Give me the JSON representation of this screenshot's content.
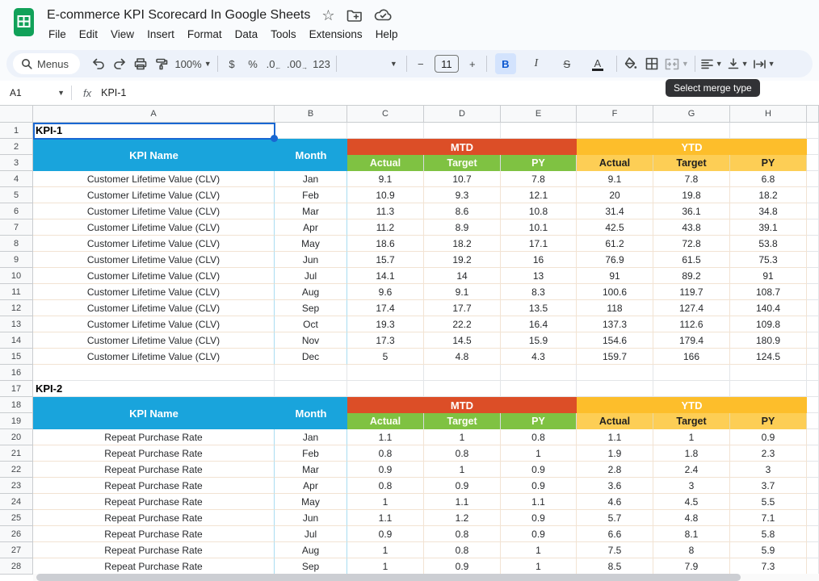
{
  "titlebar": {
    "title": "E-commerce KPI Scorecard In Google Sheets",
    "menus": [
      "File",
      "Edit",
      "View",
      "Insert",
      "Format",
      "Data",
      "Tools",
      "Extensions",
      "Help"
    ]
  },
  "toolbar": {
    "menus_label": "Menus",
    "zoom_level": "100%",
    "font_size": "11",
    "buttons": {
      "currency": "$",
      "percent": "%",
      "decrease_decimal": ".0",
      "increase_decimal": ".00",
      "number_format": "123",
      "minus": "−",
      "plus": "+",
      "bold": "B",
      "italic": "I",
      "strikethrough": "S",
      "text_color": "A"
    },
    "tooltip": "Select merge type"
  },
  "formula_bar": {
    "cell_ref": "A1",
    "formula": "KPI-1"
  },
  "grid": {
    "columns": [
      "A",
      "B",
      "C",
      "D",
      "E",
      "F",
      "G",
      "H"
    ],
    "visible_row_count": 28,
    "active_cell": "A1"
  },
  "tables": [
    {
      "label": "KPI-1",
      "label_row": 1,
      "header_row": 2,
      "data_row": 4,
      "col_headers": [
        "KPI Name",
        "Month"
      ],
      "group_headers": [
        "MTD",
        "YTD"
      ],
      "sub_headers": [
        "Actual",
        "Target",
        "PY"
      ],
      "rows": [
        {
          "kpi": "Customer Lifetime Value (CLV)",
          "month": "Jan",
          "values": [
            "9.1",
            "10.7",
            "7.8",
            "9.1",
            "7.8",
            "6.8"
          ]
        },
        {
          "kpi": "Customer Lifetime Value (CLV)",
          "month": "Feb",
          "values": [
            "10.9",
            "9.3",
            "12.1",
            "20",
            "19.8",
            "18.2"
          ]
        },
        {
          "kpi": "Customer Lifetime Value (CLV)",
          "month": "Mar",
          "values": [
            "11.3",
            "8.6",
            "10.8",
            "31.4",
            "36.1",
            "34.8"
          ]
        },
        {
          "kpi": "Customer Lifetime Value (CLV)",
          "month": "Apr",
          "values": [
            "11.2",
            "8.9",
            "10.1",
            "42.5",
            "43.8",
            "39.1"
          ]
        },
        {
          "kpi": "Customer Lifetime Value (CLV)",
          "month": "May",
          "values": [
            "18.6",
            "18.2",
            "17.1",
            "61.2",
            "72.8",
            "53.8"
          ]
        },
        {
          "kpi": "Customer Lifetime Value (CLV)",
          "month": "Jun",
          "values": [
            "15.7",
            "19.2",
            "16",
            "76.9",
            "61.5",
            "75.3"
          ]
        },
        {
          "kpi": "Customer Lifetime Value (CLV)",
          "month": "Jul",
          "values": [
            "14.1",
            "14",
            "13",
            "91",
            "89.2",
            "91"
          ]
        },
        {
          "kpi": "Customer Lifetime Value (CLV)",
          "month": "Aug",
          "values": [
            "9.6",
            "9.1",
            "8.3",
            "100.6",
            "119.7",
            "108.7"
          ]
        },
        {
          "kpi": "Customer Lifetime Value (CLV)",
          "month": "Sep",
          "values": [
            "17.4",
            "17.7",
            "13.5",
            "118",
            "127.4",
            "140.4"
          ]
        },
        {
          "kpi": "Customer Lifetime Value (CLV)",
          "month": "Oct",
          "values": [
            "19.3",
            "22.2",
            "16.4",
            "137.3",
            "112.6",
            "109.8"
          ]
        },
        {
          "kpi": "Customer Lifetime Value (CLV)",
          "month": "Nov",
          "values": [
            "17.3",
            "14.5",
            "15.9",
            "154.6",
            "179.4",
            "180.9"
          ]
        },
        {
          "kpi": "Customer Lifetime Value (CLV)",
          "month": "Dec",
          "values": [
            "5",
            "4.8",
            "4.3",
            "159.7",
            "166",
            "124.5"
          ]
        }
      ]
    },
    {
      "label": "KPI-2",
      "label_row": 17,
      "header_row": 18,
      "data_row": 20,
      "col_headers": [
        "KPI Name",
        "Month"
      ],
      "group_headers": [
        "MTD",
        "YTD"
      ],
      "sub_headers": [
        "Actual",
        "Target",
        "PY"
      ],
      "rows": [
        {
          "kpi": "Repeat Purchase Rate",
          "month": "Jan",
          "values": [
            "1.1",
            "1",
            "0.8",
            "1.1",
            "1",
            "0.9"
          ]
        },
        {
          "kpi": "Repeat Purchase Rate",
          "month": "Feb",
          "values": [
            "0.8",
            "0.8",
            "1",
            "1.9",
            "1.8",
            "2.3"
          ]
        },
        {
          "kpi": "Repeat Purchase Rate",
          "month": "Mar",
          "values": [
            "0.9",
            "1",
            "0.9",
            "2.8",
            "2.4",
            "3"
          ]
        },
        {
          "kpi": "Repeat Purchase Rate",
          "month": "Apr",
          "values": [
            "0.8",
            "0.9",
            "0.9",
            "3.6",
            "3",
            "3.7"
          ]
        },
        {
          "kpi": "Repeat Purchase Rate",
          "month": "May",
          "values": [
            "1",
            "1.1",
            "1.1",
            "4.6",
            "4.5",
            "5.5"
          ]
        },
        {
          "kpi": "Repeat Purchase Rate",
          "month": "Jun",
          "values": [
            "1.1",
            "1.2",
            "0.9",
            "5.7",
            "4.8",
            "7.1"
          ]
        },
        {
          "kpi": "Repeat Purchase Rate",
          "month": "Jul",
          "values": [
            "0.9",
            "0.8",
            "0.9",
            "6.6",
            "8.1",
            "5.8"
          ]
        },
        {
          "kpi": "Repeat Purchase Rate",
          "month": "Aug",
          "values": [
            "1",
            "0.8",
            "1",
            "7.5",
            "8",
            "5.9"
          ]
        },
        {
          "kpi": "Repeat Purchase Rate",
          "month": "Sep",
          "values": [
            "1",
            "0.9",
            "1",
            "8.5",
            "7.9",
            "7.3"
          ]
        }
      ]
    }
  ],
  "colors": {
    "header_blue": "#19a4dc",
    "mtd_red": "#dc4e27",
    "ytd_gold": "#fdbe2b",
    "sub_green": "#7fc242",
    "sub_light_gold": "#fdce55",
    "selection_blue": "#1967d2"
  }
}
